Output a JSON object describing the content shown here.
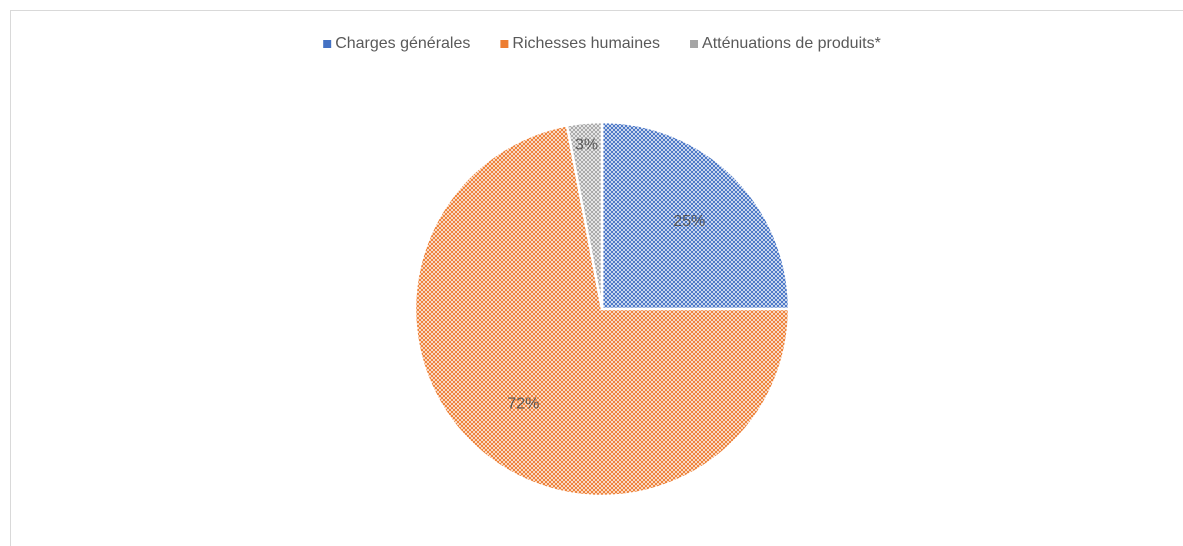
{
  "chart_data": {
    "type": "pie",
    "categories": [
      "Charges générales",
      "Richesses humaines",
      "Atténuations de produits*"
    ],
    "values": [
      25,
      72,
      3
    ],
    "value_labels": [
      "25%",
      "72%",
      "3%"
    ],
    "colors": [
      "#4472c4",
      "#ed7d31",
      "#a5a5a5"
    ],
    "legend": "top"
  }
}
